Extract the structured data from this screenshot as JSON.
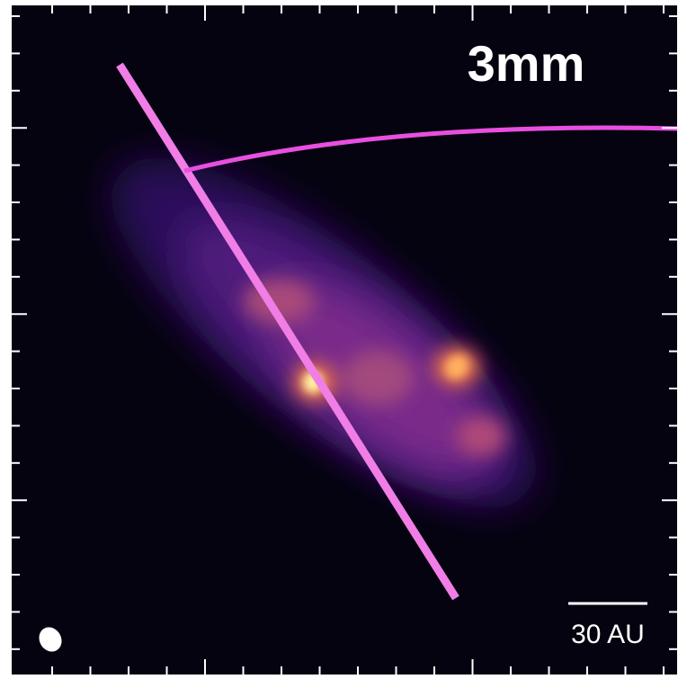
{
  "label": "3mm",
  "scale_bar": "30 AU"
}
